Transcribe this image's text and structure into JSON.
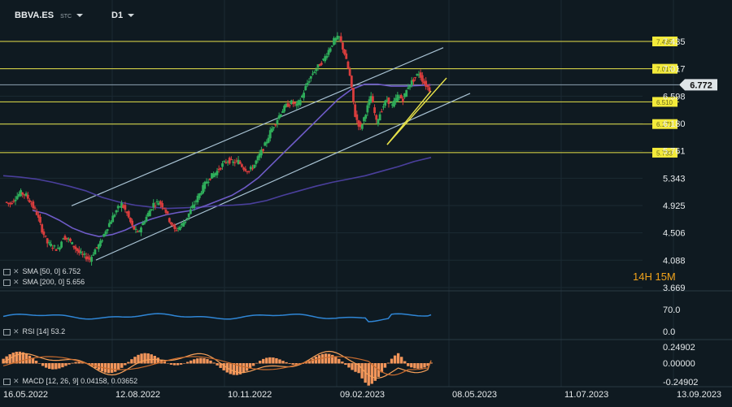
{
  "header": {
    "symbol": "BBVA.ES",
    "market": "STC",
    "interval": "D1"
  },
  "timer": "14H 15M",
  "colors": {
    "background": "#0f1a21",
    "grid": "#1b2a33",
    "level_line": "#e8e34a",
    "price_line": "#8fa3b3",
    "channel": "#a9c3d4",
    "sma50": "#6e5bc7",
    "sma200": "#4a3f9c",
    "candle_up": "#2fae5b",
    "candle_down": "#d93d3d",
    "rsi": "#2f86d6",
    "macd_hist": "#f2955a",
    "macd_line": "#f6a05a",
    "signal_line": "#c86b2e"
  },
  "indicators": {
    "sma50_label": "SMA [50, 0] 6.752",
    "sma200_label": "SMA [200, 0] 5.656",
    "rsi_label": "RSI [14] 53.2",
    "macd_label": "MACD [12, 26, 9] 0.04158, 0.03652"
  },
  "chart_data": {
    "type": "candlestick",
    "x_ticks": [
      "16.05.2022",
      "12.08.2022",
      "10.11.2022",
      "09.02.2023",
      "08.05.2023",
      "11.07.2023",
      "13.09.2023"
    ],
    "y_ticks": [
      "7.435",
      "7.017",
      "6.598",
      "6.180",
      "5.761",
      "5.343",
      "4.925",
      "4.506",
      "4.088",
      "3.669"
    ],
    "current_price": "6.772",
    "levels": [
      {
        "value": 7.435,
        "label": "7.435"
      },
      {
        "value": 7.017,
        "label": "7.017"
      },
      {
        "value": 6.51,
        "label": "6.510"
      },
      {
        "value": 6.171,
        "label": "6.171"
      },
      {
        "value": 5.733,
        "label": "5.733"
      }
    ],
    "channel_upper": [
      [
        4.92,
        7.34
      ]
    ],
    "channel_lower": [
      [
        4.09,
        6.64
      ]
    ],
    "close_path": [
      4.98,
      4.95,
      5.05,
      5.12,
      5.08,
      4.95,
      4.8,
      4.55,
      4.35,
      4.3,
      4.25,
      4.45,
      4.4,
      4.3,
      4.2,
      4.15,
      4.1,
      4.25,
      4.35,
      4.55,
      4.7,
      4.85,
      4.95,
      4.8,
      4.6,
      4.5,
      4.65,
      4.8,
      4.95,
      4.98,
      4.9,
      4.7,
      4.55,
      4.6,
      4.7,
      4.85,
      5.0,
      5.15,
      5.3,
      5.38,
      5.45,
      5.55,
      5.62,
      5.58,
      5.6,
      5.5,
      5.45,
      5.55,
      5.7,
      5.85,
      6.05,
      6.2,
      6.35,
      6.45,
      6.5,
      6.45,
      6.6,
      6.8,
      6.95,
      7.05,
      7.15,
      7.3,
      7.45,
      7.5,
      7.25,
      6.9,
      6.3,
      6.1,
      6.35,
      6.6,
      6.2,
      6.4,
      6.55,
      6.45,
      6.6,
      6.55,
      6.75,
      6.85,
      6.95,
      6.8,
      6.7
    ],
    "sma50_path": [
      4.85,
      4.8,
      4.7,
      4.58,
      4.5,
      4.45,
      4.48,
      4.55,
      4.65,
      4.72,
      4.78,
      4.82,
      4.85,
      4.92,
      5.0,
      5.08,
      5.2,
      5.35,
      5.55,
      5.75,
      5.95,
      6.15,
      6.35,
      6.55,
      6.7,
      6.78,
      6.78,
      6.75,
      6.75,
      6.76,
      6.77
    ],
    "sma200_path": [
      5.38,
      5.36,
      5.33,
      5.28,
      5.22,
      5.15,
      5.05,
      4.98,
      4.93,
      4.9,
      4.88,
      4.89,
      4.9,
      4.92,
      4.93,
      4.95,
      5.0,
      5.08,
      5.15,
      5.22,
      5.28,
      5.33,
      5.38,
      5.45,
      5.52,
      5.6,
      5.66
    ],
    "rsi": {
      "value": 53.2,
      "ticks": [
        "70.0",
        "0.0"
      ]
    },
    "macd": {
      "macd": 0.04158,
      "signal": 0.03652,
      "ticks": [
        "0.24902",
        "0.00000",
        "-0.24902"
      ]
    }
  }
}
